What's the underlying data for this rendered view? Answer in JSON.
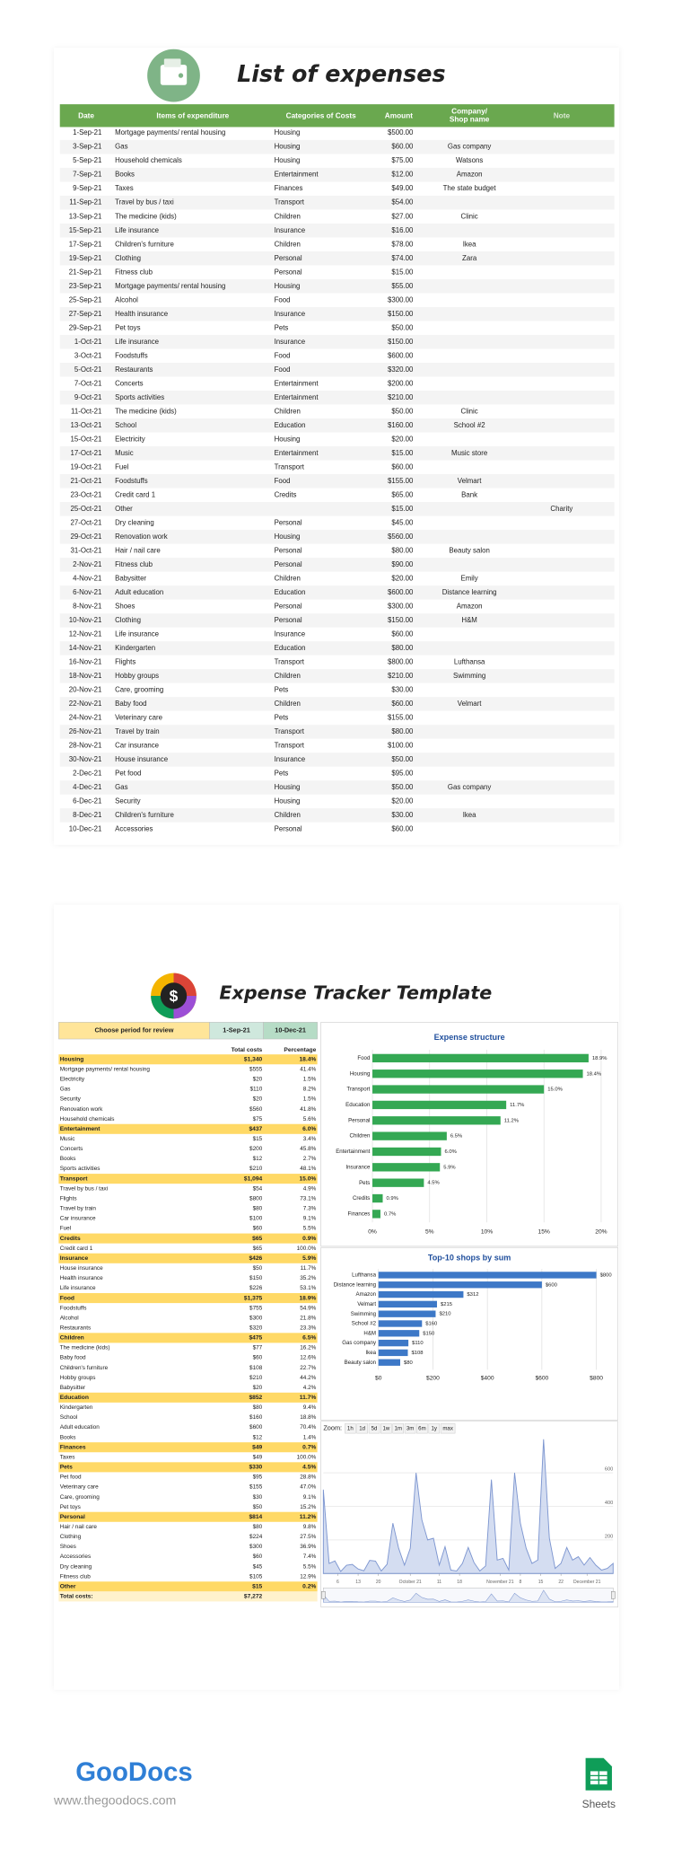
{
  "expenses": {
    "title": "List of expenses",
    "columns": [
      "Date",
      "Items of expenditure",
      "Categories of Costs",
      "Amount",
      [
        "Company/",
        "Shop name"
      ],
      "Note"
    ],
    "rows": [
      {
        "date": "1-Sep-21",
        "item": "Mortgage payments/ rental housing",
        "category": "Housing",
        "amount": "$500.00"
      },
      {
        "date": "3-Sep-21",
        "item": "Gas",
        "category": "Housing",
        "amount": "$60.00",
        "company": "Gas company"
      },
      {
        "date": "5-Sep-21",
        "item": "Household chemicals",
        "category": "Housing",
        "amount": "$75.00",
        "company": "Watsons"
      },
      {
        "date": "7-Sep-21",
        "item": "Books",
        "category": "Entertainment",
        "amount": "$12.00",
        "company": "Amazon"
      },
      {
        "date": "9-Sep-21",
        "item": "Taxes",
        "category": "Finances",
        "amount": "$49.00",
        "company": "The state budget"
      },
      {
        "date": "11-Sep-21",
        "item": "Travel by bus / taxi",
        "category": "Transport",
        "amount": "$54.00"
      },
      {
        "date": "13-Sep-21",
        "item": "The medicine (kids)",
        "category": "Children",
        "amount": "$27.00",
        "company": "Clinic"
      },
      {
        "date": "15-Sep-21",
        "item": "Life insurance",
        "category": "Insurance",
        "amount": "$16.00"
      },
      {
        "date": "17-Sep-21",
        "item": "Children's furniture",
        "category": "Children",
        "amount": "$78.00",
        "company": "Ikea"
      },
      {
        "date": "19-Sep-21",
        "item": "Clothing",
        "category": "Personal",
        "amount": "$74.00",
        "company": "Zara"
      },
      {
        "date": "21-Sep-21",
        "item": "Fitness club",
        "category": "Personal",
        "amount": "$15.00"
      },
      {
        "date": "23-Sep-21",
        "item": "Mortgage payments/ rental housing",
        "category": "Housing",
        "amount": "$55.00"
      },
      {
        "date": "25-Sep-21",
        "item": "Alcohol",
        "category": "Food",
        "amount": "$300.00"
      },
      {
        "date": "27-Sep-21",
        "item": "Health insurance",
        "category": "Insurance",
        "amount": "$150.00"
      },
      {
        "date": "29-Sep-21",
        "item": "Pet toys",
        "category": "Pets",
        "amount": "$50.00"
      },
      {
        "date": "1-Oct-21",
        "item": "Life insurance",
        "category": "Insurance",
        "amount": "$150.00"
      },
      {
        "date": "3-Oct-21",
        "item": "Foodstuffs",
        "category": "Food",
        "amount": "$600.00"
      },
      {
        "date": "5-Oct-21",
        "item": "Restaurants",
        "category": "Food",
        "amount": "$320.00"
      },
      {
        "date": "7-Oct-21",
        "item": "Concerts",
        "category": "Entertainment",
        "amount": "$200.00"
      },
      {
        "date": "9-Oct-21",
        "item": "Sports activities",
        "category": "Entertainment",
        "amount": "$210.00"
      },
      {
        "date": "11-Oct-21",
        "item": "The medicine (kids)",
        "category": "Children",
        "amount": "$50.00",
        "company": "Clinic"
      },
      {
        "date": "13-Oct-21",
        "item": "School",
        "category": "Education",
        "amount": "$160.00",
        "company": "School #2"
      },
      {
        "date": "15-Oct-21",
        "item": "Electricity",
        "category": "Housing",
        "amount": "$20.00"
      },
      {
        "date": "17-Oct-21",
        "item": "Music",
        "category": "Entertainment",
        "amount": "$15.00",
        "company": "Music store"
      },
      {
        "date": "19-Oct-21",
        "item": "Fuel",
        "category": "Transport",
        "amount": "$60.00"
      },
      {
        "date": "21-Oct-21",
        "item": "Foodstuffs",
        "category": "Food",
        "amount": "$155.00",
        "company": "Velmart"
      },
      {
        "date": "23-Oct-21",
        "item": "Credit card 1",
        "category": "Credits",
        "amount": "$65.00",
        "company": "Bank"
      },
      {
        "date": "25-Oct-21",
        "item": "Other",
        "amount": "$15.00",
        "note": "Charity"
      },
      {
        "date": "27-Oct-21",
        "item": "Dry cleaning",
        "category": "Personal",
        "amount": "$45.00"
      },
      {
        "date": "29-Oct-21",
        "item": "Renovation work",
        "category": "Housing",
        "amount": "$560.00"
      },
      {
        "date": "31-Oct-21",
        "item": "Hair / nail care",
        "category": "Personal",
        "amount": "$80.00",
        "company": "Beauty salon"
      },
      {
        "date": "2-Nov-21",
        "item": "Fitness club",
        "category": "Personal",
        "amount": "$90.00"
      },
      {
        "date": "4-Nov-21",
        "item": "Babysitter",
        "category": "Children",
        "amount": "$20.00",
        "company": "Emily"
      },
      {
        "date": "6-Nov-21",
        "item": "Adult education",
        "category": "Education",
        "amount": "$600.00",
        "company": "Distance learning"
      },
      {
        "date": "8-Nov-21",
        "item": "Shoes",
        "category": "Personal",
        "amount": "$300.00",
        "company": "Amazon"
      },
      {
        "date": "10-Nov-21",
        "item": "Clothing",
        "category": "Personal",
        "amount": "$150.00",
        "company": "H&M"
      },
      {
        "date": "12-Nov-21",
        "item": "Life insurance",
        "category": "Insurance",
        "amount": "$60.00"
      },
      {
        "date": "14-Nov-21",
        "item": "Kindergarten",
        "category": "Education",
        "amount": "$80.00"
      },
      {
        "date": "16-Nov-21",
        "item": "Flights",
        "category": "Transport",
        "amount": "$800.00",
        "company": "Lufthansa"
      },
      {
        "date": "18-Nov-21",
        "item": "Hobby groups",
        "category": "Children",
        "amount": "$210.00",
        "company": "Swimming"
      },
      {
        "date": "20-Nov-21",
        "item": "Care, grooming",
        "category": "Pets",
        "amount": "$30.00"
      },
      {
        "date": "22-Nov-21",
        "item": "Baby food",
        "category": "Children",
        "amount": "$60.00",
        "company": "Velmart"
      },
      {
        "date": "24-Nov-21",
        "item": "Veterinary care",
        "category": "Pets",
        "amount": "$155.00"
      },
      {
        "date": "26-Nov-21",
        "item": "Travel by train",
        "category": "Transport",
        "amount": "$80.00"
      },
      {
        "date": "28-Nov-21",
        "item": "Car insurance",
        "category": "Transport",
        "amount": "$100.00"
      },
      {
        "date": "30-Nov-21",
        "item": "House insurance",
        "category": "Insurance",
        "amount": "$50.00"
      },
      {
        "date": "2-Dec-21",
        "item": "Pet food",
        "category": "Pets",
        "amount": "$95.00"
      },
      {
        "date": "4-Dec-21",
        "item": "Gas",
        "category": "Housing",
        "amount": "$50.00",
        "company": "Gas company"
      },
      {
        "date": "6-Dec-21",
        "item": "Security",
        "category": "Housing",
        "amount": "$20.00"
      },
      {
        "date": "8-Dec-21",
        "item": "Children's furniture",
        "category": "Children",
        "amount": "$30.00",
        "company": "Ikea"
      },
      {
        "date": "10-Dec-21",
        "item": "Accessories",
        "category": "Personal",
        "amount": "$60.00"
      }
    ]
  },
  "tracker": {
    "title": "Expense Tracker Template",
    "period_label": "Choose period for review",
    "period_start": "1-Sep-21",
    "period_end": "10-Dec-21",
    "columns": [
      "Total costs",
      "Percentage"
    ],
    "groups": [
      {
        "name": "Housing",
        "total": "$1,340",
        "pct": "18.4%",
        "items": [
          [
            "Mortgage payments/ rental housing",
            "$555",
            "41.4%"
          ],
          [
            "Electricity",
            "$20",
            "1.5%"
          ],
          [
            "Gas",
            "$110",
            "8.2%"
          ],
          [
            "Security",
            "$20",
            "1.5%"
          ],
          [
            "Renovation work",
            "$560",
            "41.8%"
          ],
          [
            "Household chemicals",
            "$75",
            "5.6%"
          ]
        ]
      },
      {
        "name": "Entertainment",
        "total": "$437",
        "pct": "6.0%",
        "items": [
          [
            "Music",
            "$15",
            "3.4%"
          ],
          [
            "Concerts",
            "$200",
            "45.8%"
          ],
          [
            "Books",
            "$12",
            "2.7%"
          ],
          [
            "Sports activities",
            "$210",
            "48.1%"
          ]
        ]
      },
      {
        "name": "Transport",
        "total": "$1,094",
        "pct": "15.0%",
        "items": [
          [
            "Travel by bus / taxi",
            "$54",
            "4.9%"
          ],
          [
            "Flights",
            "$800",
            "73.1%"
          ],
          [
            "Travel by train",
            "$80",
            "7.3%"
          ],
          [
            "Car insurance",
            "$100",
            "9.1%"
          ],
          [
            "Fuel",
            "$60",
            "5.5%"
          ]
        ]
      },
      {
        "name": "Credits",
        "total": "$65",
        "pct": "0.9%",
        "items": [
          [
            "Credit card 1",
            "$65",
            "100.0%"
          ]
        ]
      },
      {
        "name": "Insurance",
        "total": "$426",
        "pct": "5.9%",
        "items": [
          [
            "House insurance",
            "$50",
            "11.7%"
          ],
          [
            "Health insurance",
            "$150",
            "35.2%"
          ],
          [
            "Life insurance",
            "$226",
            "53.1%"
          ]
        ]
      },
      {
        "name": "Food",
        "total": "$1,375",
        "pct": "18.9%",
        "items": [
          [
            "Foodstuffs",
            "$755",
            "54.9%"
          ],
          [
            "Alcohol",
            "$300",
            "21.8%"
          ],
          [
            "Restaurants",
            "$320",
            "23.3%"
          ]
        ]
      },
      {
        "name": "Children",
        "total": "$475",
        "pct": "6.5%",
        "items": [
          [
            "The medicine (kids)",
            "$77",
            "16.2%"
          ],
          [
            "Baby food",
            "$60",
            "12.6%"
          ],
          [
            "Children's furniture",
            "$108",
            "22.7%"
          ],
          [
            "Hobby groups",
            "$210",
            "44.2%"
          ],
          [
            "Babysitter",
            "$20",
            "4.2%"
          ]
        ]
      },
      {
        "name": "Education",
        "total": "$852",
        "pct": "11.7%",
        "items": [
          [
            "Kindergarten",
            "$80",
            "9.4%"
          ],
          [
            "School",
            "$160",
            "18.8%"
          ],
          [
            "Adult education",
            "$600",
            "70.4%"
          ],
          [
            "Books",
            "$12",
            "1.4%"
          ]
        ]
      },
      {
        "name": "Finances",
        "total": "$49",
        "pct": "0.7%",
        "items": [
          [
            "Taxes",
            "$49",
            "100.0%"
          ]
        ]
      },
      {
        "name": "Pets",
        "total": "$330",
        "pct": "4.5%",
        "items": [
          [
            "Pet food",
            "$95",
            "28.8%"
          ],
          [
            "Veterinary care",
            "$155",
            "47.0%"
          ],
          [
            "Care, grooming",
            "$30",
            "9.1%"
          ],
          [
            "Pet toys",
            "$50",
            "15.2%"
          ]
        ]
      },
      {
        "name": "Personal",
        "total": "$814",
        "pct": "11.2%",
        "items": [
          [
            "Hair / nail care",
            "$80",
            "9.8%"
          ],
          [
            "Clothing",
            "$224",
            "27.5%"
          ],
          [
            "Shoes",
            "$300",
            "36.9%"
          ],
          [
            "Accessories",
            "$60",
            "7.4%"
          ],
          [
            "Dry cleaning",
            "$45",
            "5.5%"
          ],
          [
            "Fitness club",
            "$105",
            "12.9%"
          ]
        ]
      },
      {
        "name": "Other",
        "total": "$15",
        "pct": "0.2%",
        "items": []
      }
    ],
    "total_label": "Total costs:",
    "total": "$7,272"
  },
  "chart_data": [
    {
      "type": "bar",
      "title": "Expense structure",
      "color": "#34a853",
      "categories": [
        "Food",
        "Housing",
        "Transport",
        "Education",
        "Personal",
        "Children",
        "Entertainment",
        "Insurance",
        "Pets",
        "Credits",
        "Finances"
      ],
      "values": [
        18.9,
        18.4,
        15.0,
        11.7,
        11.2,
        6.5,
        6.0,
        5.9,
        4.5,
        0.9,
        0.7
      ],
      "value_labels": [
        "18.9%",
        "18.4%",
        "15.0%",
        "11.7%",
        "11.2%",
        "6.5%",
        "6.0%",
        "5.9%",
        "4.5%",
        "0.9%",
        "0.7%"
      ],
      "xlim": [
        0,
        20
      ],
      "xticks": [
        {
          "value": 0,
          "label": "0%"
        },
        {
          "value": 5,
          "label": "5%"
        },
        {
          "value": 10,
          "label": "10%"
        },
        {
          "value": 15,
          "label": "15%"
        },
        {
          "value": 20,
          "label": "20%"
        }
      ],
      "grid": true
    },
    {
      "type": "bar",
      "title": "Top-10 shops by sum",
      "color": "#3d78c7",
      "categories": [
        "Lufthansa",
        "Distance learning",
        "Amazon",
        "Velmart",
        "Swimming",
        "School #2",
        "H&M",
        "Gas company",
        "Ikea",
        "Beauty salon"
      ],
      "values": [
        800,
        600,
        312,
        215,
        210,
        160,
        150,
        110,
        108,
        80
      ],
      "value_labels": [
        "$800",
        "$600",
        "$312",
        "$215",
        "$210",
        "$160",
        "$150",
        "$110",
        "$108",
        "$80"
      ],
      "xlim": [
        0,
        800
      ],
      "xticks": [
        {
          "value": 0,
          "label": "$0"
        },
        {
          "value": 200,
          "label": "$200"
        },
        {
          "value": 400,
          "label": "$400"
        },
        {
          "value": 600,
          "label": "$600"
        },
        {
          "value": 800,
          "label": "$800"
        }
      ],
      "grid": true
    },
    {
      "type": "area",
      "zoom_label": "Zoom:",
      "zoom_options": [
        "1h",
        "1d",
        "5d",
        "1w",
        "1m",
        "3m",
        "6m",
        "1y",
        "max"
      ],
      "color": "#7d96d0",
      "x": [
        "2021-09-01",
        "2021-09-03",
        "2021-09-05",
        "2021-09-07",
        "2021-09-09",
        "2021-09-11",
        "2021-09-13",
        "2021-09-15",
        "2021-09-17",
        "2021-09-19",
        "2021-09-21",
        "2021-09-23",
        "2021-09-25",
        "2021-09-27",
        "2021-09-29",
        "2021-10-01",
        "2021-10-03",
        "2021-10-05",
        "2021-10-07",
        "2021-10-09",
        "2021-10-11",
        "2021-10-13",
        "2021-10-15",
        "2021-10-17",
        "2021-10-19",
        "2021-10-21",
        "2021-10-23",
        "2021-10-25",
        "2021-10-27",
        "2021-10-29",
        "2021-10-31",
        "2021-11-02",
        "2021-11-04",
        "2021-11-06",
        "2021-11-08",
        "2021-11-10",
        "2021-11-12",
        "2021-11-14",
        "2021-11-16",
        "2021-11-18",
        "2021-11-20",
        "2021-11-22",
        "2021-11-24",
        "2021-11-26",
        "2021-11-28",
        "2021-11-30",
        "2021-12-02",
        "2021-12-04",
        "2021-12-06",
        "2021-12-08",
        "2021-12-10"
      ],
      "values": [
        500,
        60,
        75,
        12,
        49,
        54,
        27,
        16,
        78,
        74,
        15,
        55,
        300,
        150,
        50,
        150,
        600,
        320,
        200,
        210,
        50,
        160,
        20,
        15,
        60,
        155,
        65,
        15,
        45,
        560,
        80,
        90,
        20,
        600,
        300,
        150,
        60,
        80,
        800,
        210,
        30,
        60,
        155,
        80,
        100,
        50,
        95,
        50,
        20,
        30,
        60
      ],
      "xlim": [
        "2021-09-01",
        "2021-12-10"
      ],
      "xticks": [
        {
          "value": "2021-09-06",
          "label": "6"
        },
        {
          "value": "2021-09-13",
          "label": "13"
        },
        {
          "value": "2021-09-20",
          "label": "20"
        },
        {
          "value": "2021-10-01",
          "label": "October 21"
        },
        {
          "value": "2021-10-11",
          "label": "11"
        },
        {
          "value": "2021-10-18",
          "label": "18"
        },
        {
          "value": "2021-11-01",
          "label": "November 21"
        },
        {
          "value": "2021-11-08",
          "label": "8"
        },
        {
          "value": "2021-11-15",
          "label": "15"
        },
        {
          "value": "2021-11-22",
          "label": "22"
        },
        {
          "value": "2021-12-01",
          "label": "December 21"
        }
      ],
      "ylim": [
        0,
        800
      ],
      "yticks": [
        200,
        400,
        600
      ],
      "grid": true
    }
  ],
  "footer": {
    "brand": "GooDocs",
    "url": "www.thegoodocs.com",
    "app": "Sheets"
  }
}
